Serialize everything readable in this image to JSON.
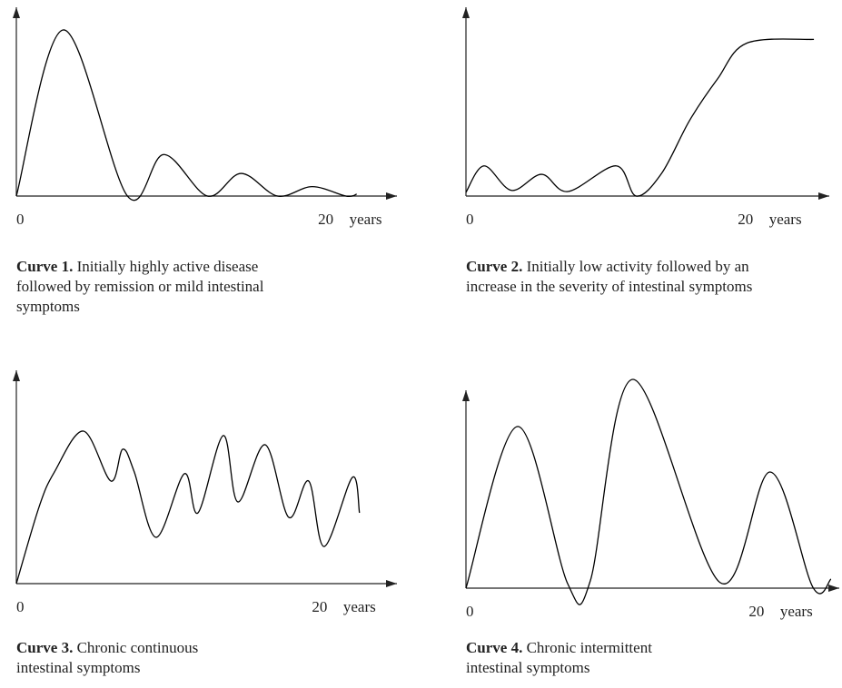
{
  "chart_data": [
    {
      "type": "line",
      "title": "Curve 1.",
      "caption": "Initially highly active disease followed by remission or mild intestinal symptoms",
      "x": [
        0,
        3.06,
        7.18,
        9.53,
        12.35,
        14.53,
        16.88,
        19.12,
        21.3,
        22
      ],
      "values": [
        0,
        88,
        0,
        22,
        0,
        12,
        0,
        5,
        0,
        1
      ],
      "xlim": [
        0,
        24.6
      ],
      "ylim": [
        0,
        100
      ],
      "xticks": [
        0,
        20
      ],
      "xlabel": "years",
      "color": "#000000"
    },
    {
      "type": "line",
      "title": "Curve 2.",
      "caption": "Initially low activity followed by an increase in the severity of intestinal symptoms",
      "x": [
        0,
        1.3,
        3.26,
        5.41,
        7.3,
        10.75,
        12.18,
        14,
        16,
        18,
        20.1,
        24.9
      ],
      "values": [
        2,
        16,
        3,
        11.5,
        2.4,
        16,
        0,
        12,
        40,
        62,
        81,
        83
      ],
      "xlim": [
        0,
        26
      ],
      "ylim": [
        0,
        100
      ],
      "xticks": [
        0,
        20
      ],
      "xlabel": "years",
      "color": "#000000"
    },
    {
      "type": "line",
      "title": "Curve 3.",
      "caption": "Chronic continuous intestinal symptoms",
      "x": [
        0,
        1.5,
        2.51,
        4.43,
        6.23,
        7.01,
        7.78,
        9.22,
        11.08,
        11.98,
        13.65,
        14.61,
        16.41,
        17.96,
        19.28,
        20.3,
        22.16,
        22.63
      ],
      "values": [
        0,
        36,
        52.3,
        71.5,
        48.1,
        63,
        52.3,
        21.7,
        51.5,
        33.2,
        69.4,
        38.3,
        65.1,
        31.1,
        48.1,
        17.4,
        49.8,
        33.2
      ],
      "xlim": [
        0,
        25.1
      ],
      "ylim": [
        0,
        100
      ],
      "xticks": [
        0,
        20
      ],
      "xlabel": "years",
      "color": "#000000"
    },
    {
      "type": "line",
      "title": "Curve 4.",
      "caption": "Chronic intermittent intestinal symptoms",
      "x": [
        0,
        3.56,
        7.0,
        8.56,
        11.5,
        17.5,
        20.94,
        23.88,
        25.13
      ],
      "values": [
        0,
        81.7,
        2.3,
        3.7,
        105.5,
        2.8,
        58.7,
        0.5,
        4.6
      ],
      "xlim": [
        0,
        25.7
      ],
      "ylim": [
        0,
        100
      ],
      "xticks": [
        0,
        20
      ],
      "xlabel": "years",
      "color": "#000000"
    }
  ]
}
